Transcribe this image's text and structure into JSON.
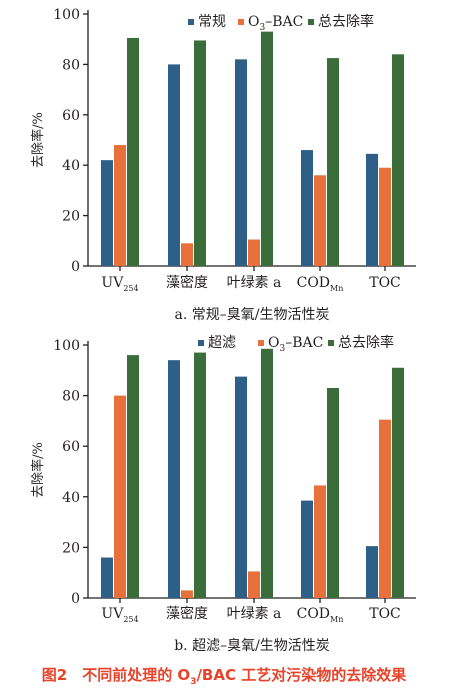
{
  "colors": {
    "series1": "#2e5f87",
    "series2": "#e8703a",
    "series3": "#3b6d3a",
    "figure_caption": "#e8432a"
  },
  "chart_data": [
    {
      "type": "bar",
      "ylabel": "去除率/%",
      "ylim": [
        0,
        100
      ],
      "yticks": [
        "0",
        "20",
        "40",
        "60",
        "80",
        "100"
      ],
      "categories": [
        {
          "main": "UV",
          "sub": "254"
        },
        {
          "main": "藻密度",
          "sub": ""
        },
        {
          "main": "叶绿素 a",
          "sub": ""
        },
        {
          "main": "COD",
          "sub": "Mn"
        },
        {
          "main": "TOC",
          "sub": ""
        }
      ],
      "series": [
        {
          "name": "常规",
          "name_sub": "",
          "name_tail": "",
          "values": [
            42,
            80,
            82,
            46,
            44.5
          ]
        },
        {
          "name": "O",
          "name_sub": "3",
          "name_tail": "–BAC",
          "values": [
            48,
            9,
            10.5,
            36,
            39
          ]
        },
        {
          "name": "总去除率",
          "name_sub": "",
          "name_tail": "",
          "values": [
            90.5,
            89.5,
            93,
            82.5,
            84
          ]
        }
      ],
      "legend": "top",
      "caption": "a. 常规–臭氧/生物活性炭"
    },
    {
      "type": "bar",
      "ylabel": "去除率/%",
      "ylim": [
        0,
        100
      ],
      "yticks": [
        "0",
        "20",
        "40",
        "60",
        "80",
        "100"
      ],
      "categories": [
        {
          "main": "UV",
          "sub": "254"
        },
        {
          "main": "藻密度",
          "sub": ""
        },
        {
          "main": "叶绿素 a",
          "sub": ""
        },
        {
          "main": "COD",
          "sub": "Mn"
        },
        {
          "main": "TOC",
          "sub": ""
        }
      ],
      "series": [
        {
          "name": "超滤",
          "name_sub": "",
          "name_tail": "",
          "values": [
            16,
            94,
            87.5,
            38.5,
            20.5
          ]
        },
        {
          "name": "O",
          "name_sub": "3",
          "name_tail": "–BAC",
          "values": [
            80,
            3,
            10.5,
            44.5,
            70.5
          ]
        },
        {
          "name": "总去除率",
          "name_sub": "",
          "name_tail": "",
          "values": [
            96,
            97,
            98.5,
            83,
            91
          ]
        }
      ],
      "legend": "top",
      "caption": "b. 超滤–臭氧/生物活性炭"
    }
  ],
  "figure_caption": {
    "prefix": "图2　不同前处理的 O",
    "sub": "3",
    "suffix": "/BAC 工艺对污染物的去除效果"
  }
}
